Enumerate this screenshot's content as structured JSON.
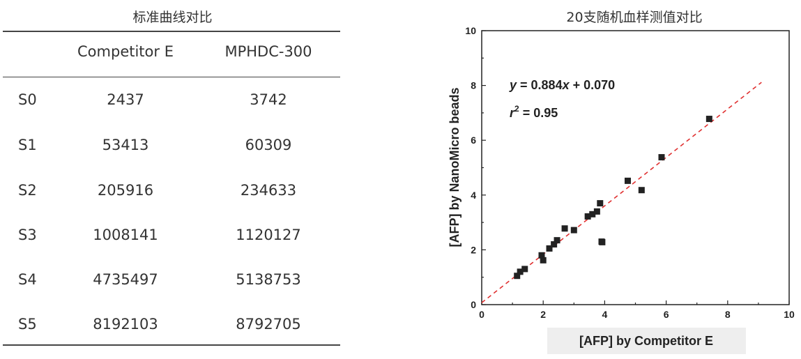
{
  "table": {
    "title": "标准曲线对比",
    "headers": [
      "",
      "Competitor E",
      "MPHDC-300"
    ],
    "rows": [
      {
        "label": "S0",
        "competitor_e": "2437",
        "mphdc": "3742"
      },
      {
        "label": "S1",
        "competitor_e": "53413",
        "mphdc": "60309"
      },
      {
        "label": "S2",
        "competitor_e": "205916",
        "mphdc": "234633"
      },
      {
        "label": "S3",
        "competitor_e": "1008141",
        "mphdc": "1120127"
      },
      {
        "label": "S4",
        "competitor_e": "4735497",
        "mphdc": "5138753"
      },
      {
        "label": "S5",
        "competitor_e": "8192103",
        "mphdc": "8792705"
      }
    ]
  },
  "chart_data": {
    "type": "scatter",
    "title": "20支随机血样测值对比",
    "xlabel": "[AFP] by Competitor E",
    "ylabel": "[AFP] by NanoMicro beads",
    "xlim": [
      0,
      10
    ],
    "ylim": [
      0,
      10
    ],
    "xticks": [
      "0",
      "2",
      "4",
      "6",
      "8",
      "10"
    ],
    "yticks": [
      "0",
      "2",
      "4",
      "6",
      "8",
      "10"
    ],
    "equation": {
      "y": "y",
      "eq": " = 0.884",
      "x": "x",
      "rest": " + 0.070"
    },
    "r2": {
      "r": "r",
      "sup": "2",
      "rest": " = 0.95"
    },
    "fit": {
      "slope": 0.884,
      "intercept": 0.07,
      "x_range": [
        0,
        9.1
      ],
      "color": "#e03030"
    },
    "marker_color": "#222222",
    "points": [
      {
        "x": 1.15,
        "y": 1.05
      },
      {
        "x": 1.25,
        "y": 1.2
      },
      {
        "x": 1.4,
        "y": 1.3
      },
      {
        "x": 1.95,
        "y": 1.8
      },
      {
        "x": 2.0,
        "y": 1.62
      },
      {
        "x": 2.2,
        "y": 2.05
      },
      {
        "x": 2.35,
        "y": 2.2
      },
      {
        "x": 2.45,
        "y": 2.35
      },
      {
        "x": 2.7,
        "y": 2.78
      },
      {
        "x": 3.0,
        "y": 2.72
      },
      {
        "x": 3.45,
        "y": 3.22
      },
      {
        "x": 3.6,
        "y": 3.3
      },
      {
        "x": 3.75,
        "y": 3.4
      },
      {
        "x": 3.85,
        "y": 3.7
      },
      {
        "x": 3.9,
        "y": 2.3
      },
      {
        "x": 3.92,
        "y": 2.28
      },
      {
        "x": 4.75,
        "y": 4.52
      },
      {
        "x": 5.2,
        "y": 4.18
      },
      {
        "x": 5.85,
        "y": 5.38
      },
      {
        "x": 7.4,
        "y": 6.78
      }
    ]
  }
}
